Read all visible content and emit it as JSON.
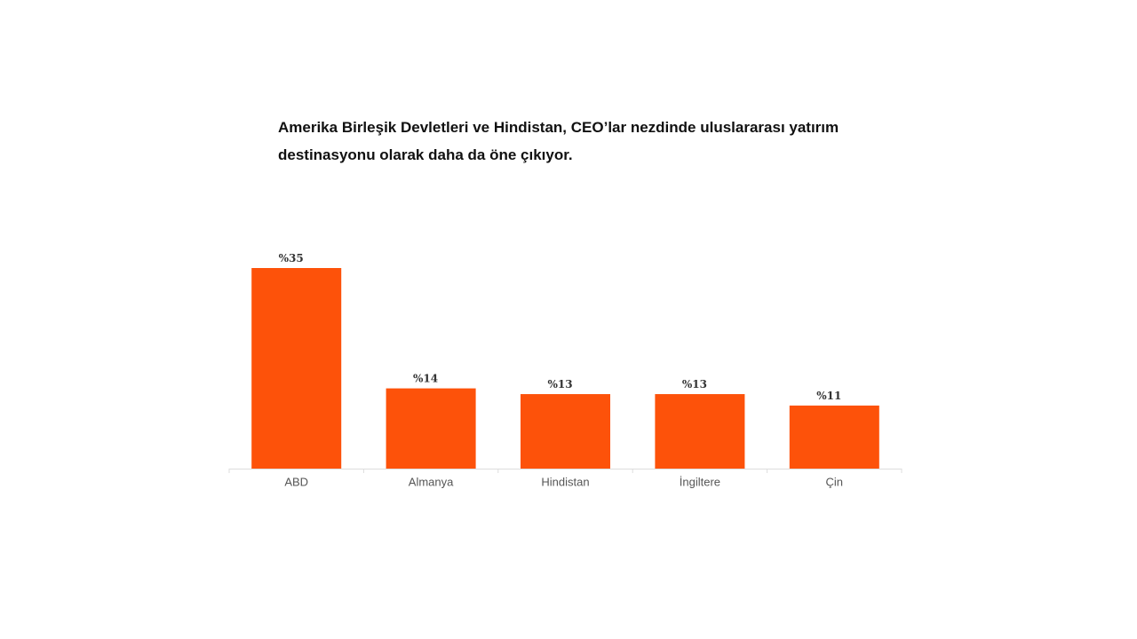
{
  "chart_data": {
    "type": "bar",
    "title": "Amerika Birleşik Devletleri ve Hindistan, CEO’lar nezdinde uluslararası yatırım destinasyonu olarak daha da öne çıkıyor.",
    "categories": [
      "ABD",
      "Almanya",
      "Hindistan",
      "İngiltere",
      "Çin"
    ],
    "values": [
      35,
      14,
      13,
      13,
      11
    ],
    "value_labels": [
      "%35",
      "%14",
      "%13",
      "%13",
      "%11"
    ],
    "color": "#fd520a"
  }
}
